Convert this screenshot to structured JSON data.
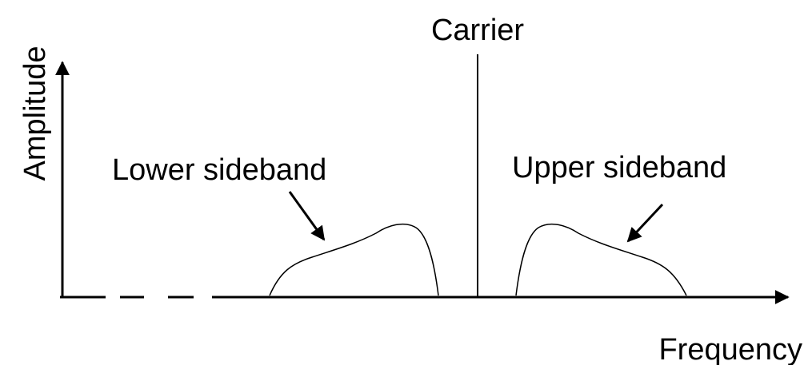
{
  "title": "Carrier",
  "y_axis_label": "Amplitude",
  "x_axis_label": "Frequency",
  "labels": {
    "lower": "Lower sideband",
    "upper": "Upper sideband"
  }
}
